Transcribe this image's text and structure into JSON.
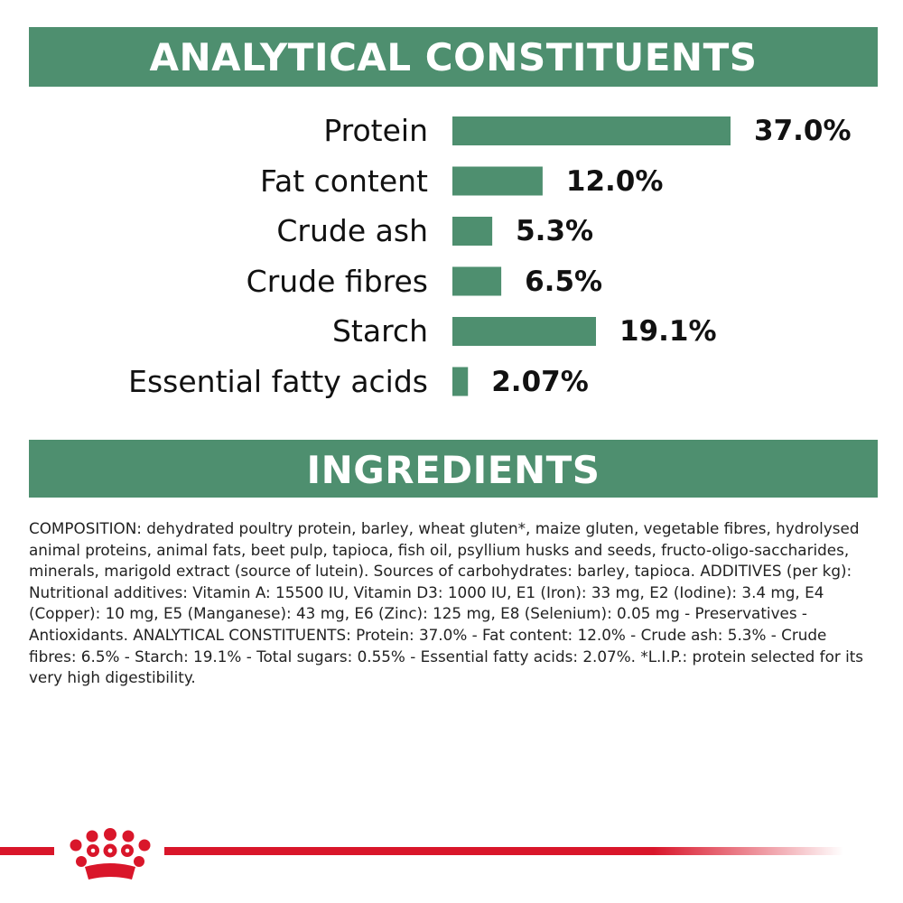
{
  "headings": {
    "analytical": "ANALYTICAL CONSTITUENTS",
    "ingredients": "INGREDIENTS"
  },
  "colors": {
    "accent_green": "#4e8f6f",
    "brand_red": "#d9162a"
  },
  "chart_data": {
    "type": "bar",
    "orientation": "horizontal",
    "title": "ANALYTICAL CONSTITUENTS",
    "categories": [
      "Protein",
      "Fat content",
      "Crude ash",
      "Crude fibres",
      "Starch",
      "Essential fatty acids"
    ],
    "values": [
      37.0,
      12.0,
      5.3,
      6.5,
      19.1,
      2.07
    ],
    "value_labels": [
      "37.0%",
      "12.0%",
      "5.3%",
      "6.5%",
      "19.1%",
      "2.07%"
    ],
    "unit": "%",
    "grid": false,
    "legend": "none",
    "bar_color": "#4e8f6f"
  },
  "composition_text": "COMPOSITION: dehydrated poultry protein, barley, wheat gluten*, maize gluten, vegetable fibres, hydrolysed animal proteins, animal fats, beet pulp, tapioca, fish oil, psyllium husks and seeds, fructo-oligo-saccharides, minerals, marigold extract (source of lutein). Sources of carbohydrates: barley, tapioca. ADDITIVES (per kg): Nutritional additives: Vitamin A: 15500 IU, Vitamin D3: 1000 IU, E1 (Iron): 33 mg, E2 (Iodine): 3.4 mg, E4 (Copper): 10 mg, E5 (Manganese): 43 mg, E6 (Zinc): 125 mg, E8 (Selenium): 0.05 mg - Preservatives - Antioxidants. ANALYTICAL CONSTITUENTS: Protein: 37.0% - Fat content: 12.0% - Crude ash: 5.3% - Crude fibres: 6.5% - Starch: 19.1% - Total sugars: 0.55% - Essential fatty acids: 2.07%. *L.I.P.: protein selected for its very high digestibility.",
  "footer": {
    "logo_icon": "royal-canin-crown-icon"
  }
}
